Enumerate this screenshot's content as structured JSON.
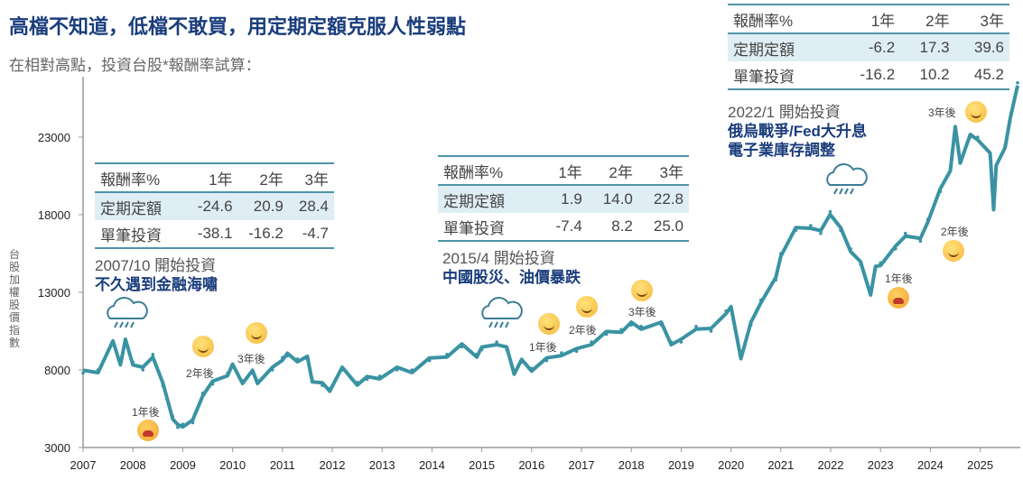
{
  "title": "高檔不知道，低檔不敢買，用定期定額克服人性弱點",
  "subtitle": "在相對高點，投資台股*報酬率試算：",
  "chart_data": {
    "type": "line",
    "title": "高檔不知道，低檔不敢買，用定期定額克服人性弱點",
    "ylabel": "台股加權股價指數",
    "xlabel": "",
    "ylim": [
      3000,
      27000
    ],
    "xlim": [
      2007,
      2025.8
    ],
    "yticks": [
      3000,
      8000,
      13000,
      18000,
      23000
    ],
    "xticks": [
      2007,
      2008,
      2009,
      2010,
      2011,
      2012,
      2013,
      2014,
      2015,
      2016,
      2017,
      2018,
      2019,
      2020,
      2021,
      2022,
      2023,
      2024,
      2025
    ],
    "color": "#3a93a3",
    "series": [
      {
        "name": "台股加權股價指數",
        "x": [
          2007.0,
          2007.3,
          2007.6,
          2007.75,
          2007.85,
          2008.0,
          2008.2,
          2008.4,
          2008.6,
          2008.8,
          2008.9,
          2009.0,
          2009.2,
          2009.4,
          2009.6,
          2009.9,
          2010.0,
          2010.2,
          2010.4,
          2010.5,
          2010.8,
          2011.0,
          2011.1,
          2011.3,
          2011.5,
          2011.6,
          2011.8,
          2011.95,
          2012.2,
          2012.5,
          2012.7,
          2012.95,
          2013.3,
          2013.6,
          2013.95,
          2014.3,
          2014.6,
          2014.9,
          2015.0,
          2015.3,
          2015.5,
          2015.65,
          2015.8,
          2016.0,
          2016.3,
          2016.6,
          2016.9,
          2017.2,
          2017.5,
          2017.8,
          2018.0,
          2018.2,
          2018.6,
          2018.8,
          2019.0,
          2019.3,
          2019.6,
          2019.9,
          2020.0,
          2020.2,
          2020.4,
          2020.6,
          2020.9,
          2021.0,
          2021.3,
          2021.6,
          2021.8,
          2021.99,
          2022.2,
          2022.4,
          2022.6,
          2022.8,
          2022.9,
          2023.0,
          2023.3,
          2023.5,
          2023.8,
          2023.95,
          2024.2,
          2024.4,
          2024.5,
          2024.6,
          2024.8,
          2024.95,
          2025.2,
          2025.27,
          2025.32,
          2025.5,
          2025.6,
          2025.75
        ],
        "values": [
          7800,
          8000,
          9700,
          8500,
          9800,
          8500,
          8000,
          9000,
          7000,
          5000,
          4300,
          4500,
          4600,
          6500,
          7100,
          7800,
          8200,
          7300,
          7800,
          7300,
          8000,
          8800,
          8900,
          8700,
          8700,
          7400,
          7000,
          6800,
          8000,
          7200,
          7400,
          7600,
          8000,
          8000,
          8600,
          9000,
          9500,
          9000,
          9300,
          9800,
          9300,
          7900,
          8500,
          8100,
          8600,
          9100,
          9200,
          9800,
          10300,
          10600,
          10900,
          10800,
          10900,
          9800,
          9800,
          10800,
          10500,
          11800,
          11900,
          8900,
          10900,
          12500,
          13800,
          15500,
          17000,
          17300,
          16800,
          18200,
          17000,
          15800,
          14800,
          13000,
          14500,
          14900,
          15800,
          16800,
          16300,
          17700,
          19500,
          21000,
          23500,
          21500,
          23000,
          23000,
          21800,
          18500,
          21000,
          22500,
          24000,
          26500
        ]
      }
    ],
    "annotations": {
      "point_labels": [
        "1年後",
        "2年後",
        "3年後"
      ]
    }
  },
  "tables": [
    {
      "header": [
        "報酬率%",
        "1年",
        "2年",
        "3年"
      ],
      "rows": [
        [
          "定期定額",
          "-24.6",
          "20.9",
          "28.4"
        ],
        [
          "單筆投資",
          "-38.1",
          "-16.2",
          "-4.7"
        ]
      ],
      "start": "2007/10 開始投資",
      "event": "不久遇到金融海嘯"
    },
    {
      "header": [
        "報酬率%",
        "1年",
        "2年",
        "3年"
      ],
      "rows": [
        [
          "定期定額",
          "1.9",
          "14.0",
          "22.8"
        ],
        [
          "單筆投資",
          "-7.4",
          "8.2",
          "25.0"
        ]
      ],
      "start": "2015/4 開始投資",
      "event": "中國股災、油價暴跌"
    },
    {
      "header": [
        "報酬率%",
        "1年",
        "2年",
        "3年"
      ],
      "rows": [
        [
          "定期定額",
          "-6.2",
          "17.3",
          "39.6"
        ],
        [
          "單筆投資",
          "-16.2",
          "10.2",
          "45.2"
        ]
      ],
      "start": "2022/1 開始投資",
      "event": "俄烏戰爭/Fed大升息",
      "event2": "電子業庫存調整"
    }
  ]
}
